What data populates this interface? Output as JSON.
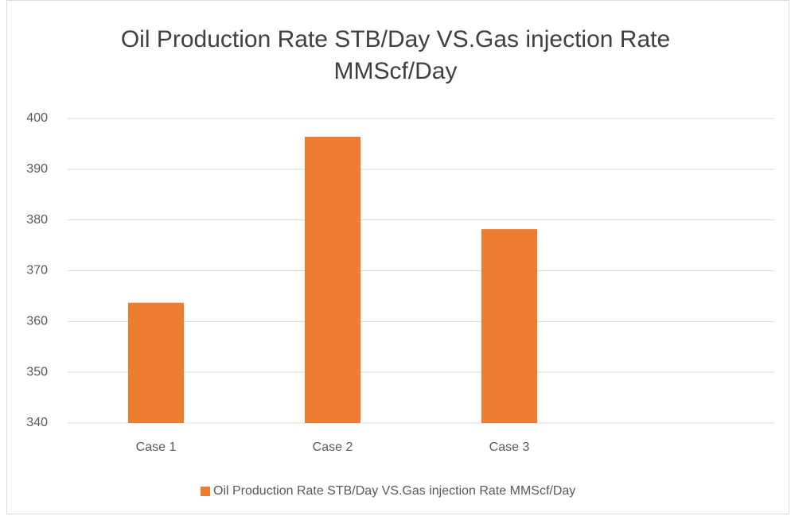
{
  "chart_data": {
    "type": "bar",
    "title": "Oil Production Rate STB/Day VS.Gas injection Rate MMScf/Day",
    "categories": [
      "Case 1",
      "Case 2",
      "Case 3",
      null
    ],
    "series": [
      {
        "name": "Oil Production Rate STB/Day VS.Gas injection Rate MMScf/Day",
        "color": "#ed7d31",
        "values": [
          363.7,
          396.4,
          378.2,
          null
        ]
      }
    ],
    "ylim": [
      340,
      400
    ],
    "yticks": [
      340,
      350,
      360,
      370,
      380,
      390,
      400
    ],
    "grid": true,
    "legend": "bottom"
  }
}
